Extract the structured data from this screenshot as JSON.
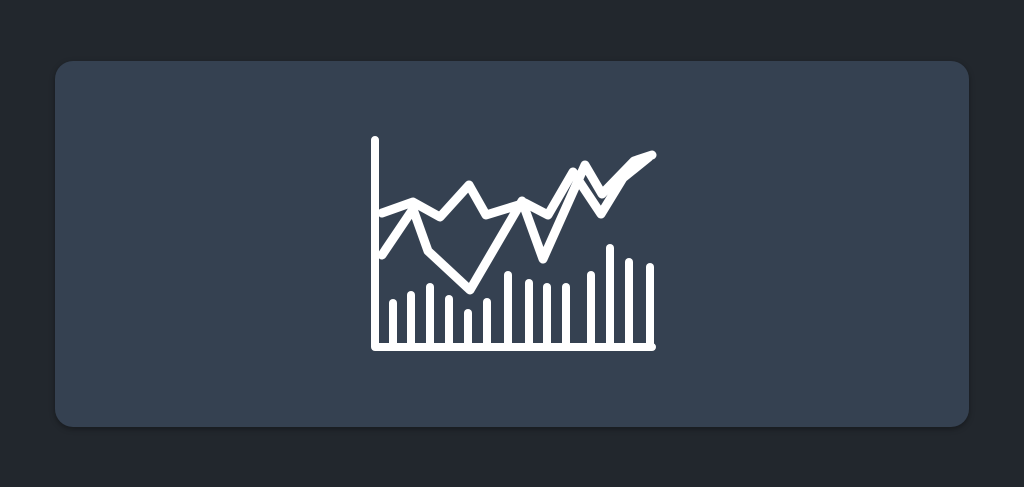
{
  "colors": {
    "page_background": "#22272d",
    "card_background": "#354151",
    "icon_color": "#ffffff"
  },
  "card": {
    "icon": "stock-chart-icon"
  }
}
